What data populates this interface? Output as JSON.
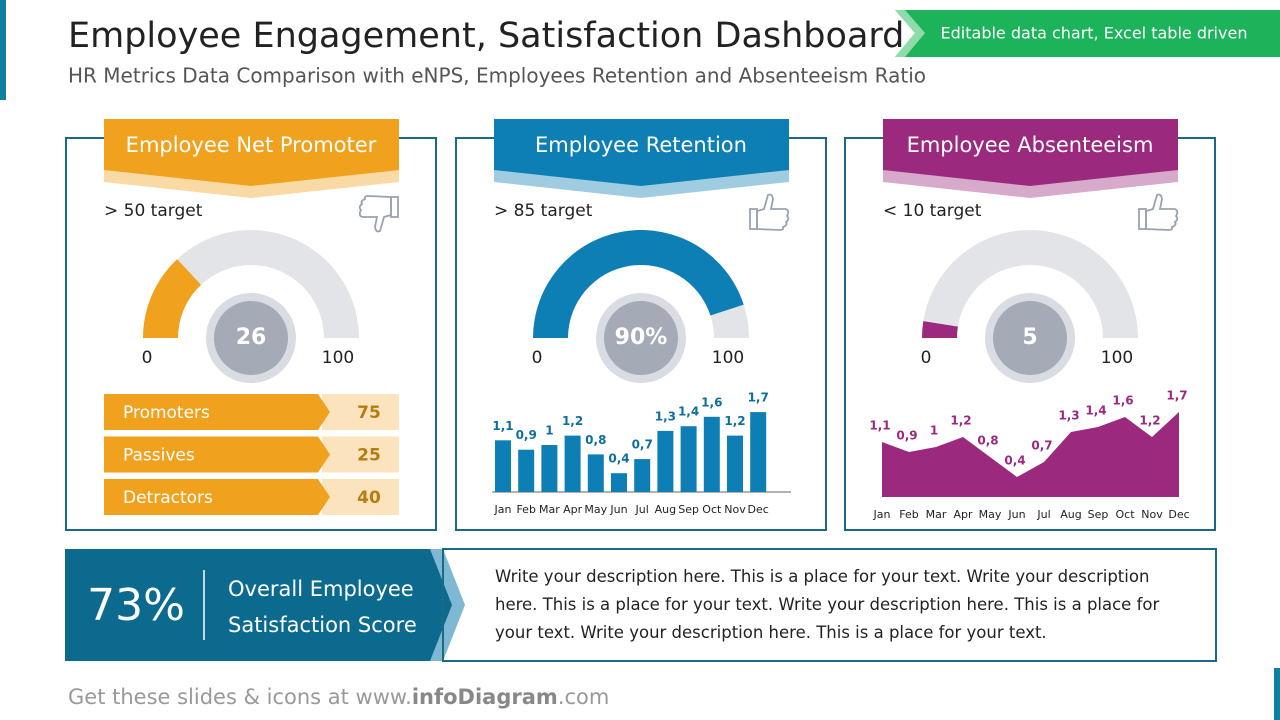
{
  "header": {
    "title": "Employee Engagement, Satisfaction Dashboard",
    "subtitle": "HR Metrics Data Comparison with eNPS, Employees Retention and Absenteeism Ratio",
    "badge": "Editable data chart, Excel table driven"
  },
  "chart_data": [
    {
      "type": "gauge",
      "title": "Employee Net Promoter",
      "target": "> 50 target",
      "value": 26,
      "min": 0,
      "max": 100,
      "color": "#f0a21e"
    },
    {
      "type": "gauge",
      "title": "Employee Retention",
      "target": "> 85 target",
      "value": 90,
      "value_label": "90%",
      "min": 0,
      "max": 100,
      "color": "#0e7fb4"
    },
    {
      "type": "gauge",
      "title": "Employee Absenteeism",
      "target": "< 10 target",
      "value": 5,
      "min": 0,
      "max": 100,
      "color": "#9b2a7f"
    },
    {
      "type": "bar",
      "categories": [
        "Jan",
        "Feb",
        "Mar",
        "Apr",
        "May",
        "Jun",
        "Jul",
        "Aug",
        "Sep",
        "Oct",
        "Nov",
        "Dec"
      ],
      "values": [
        1.1,
        0.9,
        1,
        1.2,
        0.8,
        0.4,
        0.7,
        1.3,
        1.4,
        1.6,
        1.2,
        1.7
      ],
      "value_labels": [
        "1,1",
        "0,9",
        "1",
        "1,2",
        "0,8",
        "0,4",
        "0,7",
        "1,3",
        "1,4",
        "1,6",
        "1,2",
        "1,7"
      ],
      "color": "#0e7fb4"
    },
    {
      "type": "area",
      "categories": [
        "Jan",
        "Feb",
        "Mar",
        "Apr",
        "May",
        "Jun",
        "Jul",
        "Aug",
        "Sep",
        "Oct",
        "Nov",
        "Dec"
      ],
      "values": [
        1.1,
        0.9,
        1,
        1.2,
        0.8,
        0.4,
        0.7,
        1.3,
        1.4,
        1.6,
        1.2,
        1.7
      ],
      "value_labels": [
        "1,1",
        "0,9",
        "1",
        "1,2",
        "0,8",
        "0,4",
        "0,7",
        "1,3",
        "1,4",
        "1,6",
        "1,2",
        "1,7"
      ],
      "color": "#9b2a7f"
    }
  ],
  "breakdown": {
    "rows": [
      {
        "label": "Promoters",
        "value": 75
      },
      {
        "label": "Passives",
        "value": 25
      },
      {
        "label": "Detractors",
        "value": 40
      }
    ]
  },
  "summary": {
    "value": 73,
    "value_label": "73%",
    "label": "Overall Employee Satisfaction Score",
    "description": "Write your description here. This is a place for your text. Write your description here. This is a place for your text. Write your description here. This is a place for your text. Write your description here. This is a place for your text."
  },
  "footer": [
    "Get these slides & icons at www.",
    "infoDiagram",
    ".com"
  ]
}
